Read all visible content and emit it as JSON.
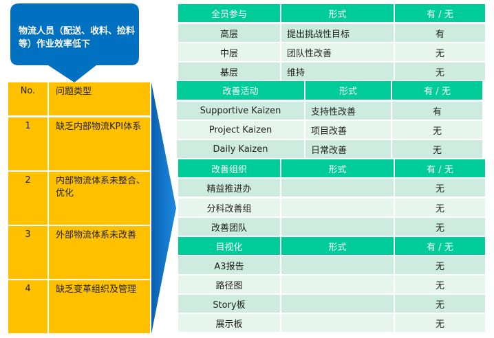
{
  "callout": {
    "text": "物流人员（配送、收料、捡料等）作业效率低下"
  },
  "problems": {
    "headers": {
      "no": "No.",
      "type": "问题类型"
    },
    "rows": [
      {
        "no": "1",
        "type": "缺乏内部物流KPI体系"
      },
      {
        "no": "2",
        "type": "内部物流体系未整合、优化"
      },
      {
        "no": "3",
        "type": "外部物流体系未改善"
      },
      {
        "no": "4",
        "type": "缺乏变革组织及管理"
      }
    ]
  },
  "tables": [
    {
      "headers": [
        "全员参与",
        "形式",
        "有 / 无"
      ],
      "rows": [
        [
          "高层",
          "提出挑战性目标",
          "有"
        ],
        [
          "中层",
          "团队性改善",
          "无"
        ],
        [
          "基层",
          "维持",
          "无"
        ]
      ]
    },
    {
      "headers": [
        "改善活动",
        "形式",
        "有 / 无"
      ],
      "rows": [
        [
          "Supportive Kaizen",
          "支持性改善",
          "有"
        ],
        [
          "Project Kaizen",
          "项目改善",
          "无"
        ],
        [
          "Daily Kaizen",
          "日常改善",
          "无"
        ]
      ]
    },
    {
      "headers": [
        "改善组织",
        "形式",
        "有 / 无"
      ],
      "rows": [
        [
          "精益推进办",
          "",
          "无"
        ],
        [
          "分科改善组",
          "",
          "无"
        ],
        [
          "改善团队",
          "",
          "无"
        ]
      ]
    },
    {
      "headers": [
        "目视化",
        "形式",
        "有 / 无"
      ],
      "rows": [
        [
          "A3报告",
          "",
          "无"
        ],
        [
          "路径图",
          "",
          "无"
        ],
        [
          "Story板",
          "",
          "无"
        ],
        [
          "展示板",
          "",
          "无"
        ]
      ]
    }
  ],
  "colors": {
    "callout": "#0070C0",
    "problems": "#FFC000",
    "header": "#00CC99",
    "row": "#CDEBDF",
    "row_alt": "#E6F5EE"
  }
}
